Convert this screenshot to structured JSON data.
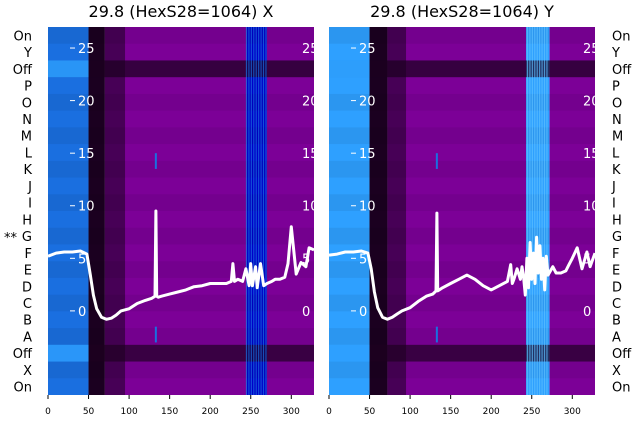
{
  "row_labels": [
    "On",
    "Y",
    "Off",
    "P",
    "O",
    "N",
    "M",
    "L",
    "K",
    "J",
    "I",
    "H",
    "G",
    "F",
    "E",
    "D",
    "C",
    "B",
    "A",
    "Off",
    "X",
    "On"
  ],
  "marker": "**",
  "marker_row": "G",
  "colors": {
    "deep": "#0000c8",
    "blue": "#1a6fe0",
    "light": "#2ea0ff",
    "purple": "#7c0097",
    "dark": "#1c0020",
    "trace": "#ffffff"
  },
  "chart_data": [
    {
      "type": "heatmap",
      "title": "29.8 (HexS28=1064) X",
      "xlim": [
        0,
        328
      ],
      "xticks": [
        0,
        50,
        100,
        150,
        200,
        250,
        300
      ],
      "ylim": [
        -8,
        27
      ],
      "yticks": [
        0,
        5,
        10,
        15,
        20,
        25
      ],
      "heat_bands": [
        {
          "x0": 0,
          "x1": 50,
          "level": "blue"
        },
        {
          "x0": 50,
          "x1": 70,
          "level": "dark"
        },
        {
          "x0": 70,
          "x1": 245,
          "level": "purple"
        },
        {
          "x0": 245,
          "x1": 270,
          "level": "deep"
        },
        {
          "x0": 270,
          "x1": 328,
          "level": "purple"
        }
      ],
      "trace": {
        "x": [
          0,
          10,
          20,
          30,
          40,
          48,
          52,
          56,
          60,
          66,
          72,
          78,
          84,
          90,
          100,
          110,
          120,
          128,
          132,
          133,
          134,
          136,
          140,
          150,
          160,
          170,
          180,
          190,
          200,
          210,
          220,
          226,
          228,
          230,
          234,
          240,
          244,
          248,
          250,
          252,
          256,
          258,
          262,
          266,
          270,
          276,
          280,
          286,
          292,
          296,
          300,
          306,
          312,
          318,
          322,
          328
        ],
        "y": [
          5.2,
          5.5,
          5.6,
          5.6,
          5.7,
          5.4,
          3.5,
          1.5,
          0.2,
          -0.6,
          -0.8,
          -0.7,
          -0.4,
          0.0,
          0.2,
          0.7,
          1.0,
          1.2,
          1.4,
          9.5,
          1.4,
          1.3,
          1.4,
          1.6,
          1.8,
          2.0,
          2.3,
          2.4,
          2.6,
          2.6,
          2.6,
          2.8,
          4.5,
          2.8,
          3.0,
          2.8,
          4.0,
          2.4,
          4.5,
          2.4,
          4.2,
          2.2,
          4.5,
          2.4,
          2.6,
          2.8,
          3.0,
          3.0,
          3.2,
          4.5,
          8.0,
          3.5,
          4.6,
          4.2,
          6.0,
          5.8
        ]
      }
    },
    {
      "type": "heatmap",
      "title": "29.8 (HexS28=1064) Y",
      "xlim": [
        0,
        328
      ],
      "xticks": [
        0,
        50,
        100,
        150,
        200,
        250,
        300
      ],
      "ylim": [
        -8,
        27
      ],
      "yticks": [
        0,
        5,
        10,
        15,
        20,
        25
      ],
      "heat_bands": [
        {
          "x0": 0,
          "x1": 50,
          "level": "light"
        },
        {
          "x0": 50,
          "x1": 72,
          "level": "dark"
        },
        {
          "x0": 72,
          "x1": 243,
          "level": "purple"
        },
        {
          "x0": 243,
          "x1": 272,
          "level": "light"
        },
        {
          "x0": 272,
          "x1": 328,
          "level": "purple"
        }
      ],
      "trace": {
        "x": [
          0,
          10,
          20,
          30,
          40,
          48,
          52,
          56,
          60,
          66,
          72,
          78,
          84,
          90,
          100,
          110,
          120,
          128,
          132,
          133,
          134,
          136,
          140,
          150,
          160,
          170,
          180,
          190,
          200,
          210,
          220,
          224,
          226,
          228,
          232,
          236,
          238,
          240,
          242,
          244,
          246,
          248,
          250,
          252,
          254,
          256,
          258,
          260,
          262,
          264,
          266,
          268,
          270,
          276,
          280,
          286,
          292,
          296,
          300,
          306,
          312,
          318,
          322,
          328
        ],
        "y": [
          5.3,
          5.4,
          5.6,
          5.6,
          5.7,
          5.5,
          4.0,
          1.8,
          0.3,
          -0.6,
          -0.8,
          -0.6,
          -0.3,
          0.0,
          0.3,
          0.9,
          1.4,
          1.6,
          1.9,
          9.3,
          1.9,
          2.0,
          2.2,
          2.6,
          3.0,
          3.4,
          3.0,
          2.4,
          2.0,
          2.4,
          2.8,
          4.4,
          2.6,
          3.0,
          4.0,
          3.0,
          4.2,
          3.2,
          1.5,
          5.0,
          2.2,
          6.5,
          3.0,
          5.5,
          2.6,
          7.0,
          3.6,
          6.2,
          3.0,
          5.0,
          2.0,
          5.2,
          3.4,
          4.2,
          3.6,
          3.6,
          3.8,
          4.4,
          5.0,
          6.0,
          4.0,
          5.6,
          4.2,
          5.5
        ]
      }
    }
  ]
}
